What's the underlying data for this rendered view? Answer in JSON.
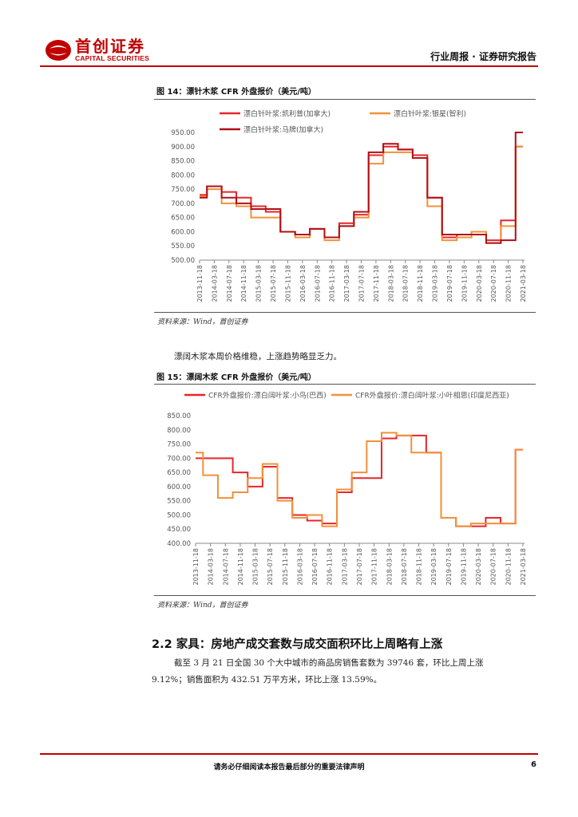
{
  "header": {
    "logo_cn": "首创证券",
    "logo_en": "CAPITAL SECURITIES",
    "report_type": "行业周报 · 证券研究报告",
    "brand_color": "#c00000"
  },
  "figure14": {
    "title": "图 14：漂针木浆 CFR 外盘报价（美元/吨）",
    "source": "资料来源：Wind，首创证券"
  },
  "paragraph1": "漂阔木浆本周价格维稳，上涨趋势略显乏力。",
  "figure15": {
    "title": "图 15：漂阔木浆 CFR 外盘报价（美元/吨）",
    "source": "资料来源：Wind，首创证券"
  },
  "section": {
    "title": "2.2 家具：房地产成交套数与成交面积环比上周略有上涨",
    "body_line1": "截至 3 月 21 日全国 30 个大中城市的商品房销售套数为 39746 套，环比上周上涨",
    "body_line2": "9.12%；销售面积为 432.51 万平方米，环比上涨 13.59%。"
  },
  "footer": {
    "disclaimer": "请务必仔细阅读本报告最后部分的重要法律声明",
    "page_number": "6"
  },
  "chart_data": [
    {
      "type": "line",
      "title": "漂针木浆 CFR 外盘报价（美元/吨）",
      "xlabel": "",
      "ylabel": "",
      "ylim": [
        500,
        950
      ],
      "yticks": [
        "500.00",
        "550.00",
        "600.00",
        "650.00",
        "700.00",
        "750.00",
        "800.00",
        "850.00",
        "900.00",
        "950.00"
      ],
      "categories": [
        "2013-11-18",
        "2014-03-18",
        "2014-07-18",
        "2014-11-18",
        "2015-03-18",
        "2015-07-18",
        "2015-11-18",
        "2016-03-18",
        "2016-07-18",
        "2016-11-18",
        "2017-03-18",
        "2017-07-18",
        "2017-11-18",
        "2018-03-18",
        "2018-07-18",
        "2018-11-18",
        "2019-03-18",
        "2019-07-18",
        "2019-11-18",
        "2020-03-18",
        "2020-07-18",
        "2020-11-18",
        "2021-03-18"
      ],
      "legend_position": "top",
      "grid": false,
      "series": [
        {
          "name": "漂白针叶浆:凯利普(加拿大)",
          "color": "#e8262a",
          "values": [
            730,
            760,
            740,
            720,
            690,
            670,
            600,
            590,
            610,
            580,
            630,
            660,
            870,
            900,
            890,
            870,
            720,
            580,
            590,
            600,
            570,
            640,
            900
          ]
        },
        {
          "name": "漂白针叶浆:银星(智利)",
          "color": "#f0913a",
          "values": [
            725,
            750,
            700,
            690,
            650,
            650,
            600,
            580,
            610,
            570,
            620,
            650,
            840,
            880,
            880,
            860,
            690,
            570,
            580,
            600,
            560,
            620,
            900
          ]
        },
        {
          "name": "漂白针叶浆:马牌(加拿大)",
          "color": "#b01018",
          "values": [
            720,
            760,
            720,
            700,
            680,
            680,
            600,
            590,
            610,
            580,
            620,
            670,
            880,
            910,
            890,
            860,
            720,
            590,
            590,
            590,
            560,
            570,
            950
          ]
        }
      ]
    },
    {
      "type": "line",
      "title": "漂阔木浆 CFR 外盘报价（美元/吨）",
      "xlabel": "",
      "ylabel": "",
      "ylim": [
        400,
        850
      ],
      "yticks": [
        "400.00",
        "450.00",
        "500.00",
        "550.00",
        "600.00",
        "650.00",
        "700.00",
        "750.00",
        "800.00",
        "850.00"
      ],
      "categories": [
        "2013-11-18",
        "2014-03-18",
        "2014-07-18",
        "2014-11-18",
        "2015-03-18",
        "2015-07-18",
        "2015-11-18",
        "2016-03-18",
        "2016-07-18",
        "2016-11-18",
        "2017-03-18",
        "2017-07-18",
        "2017-11-18",
        "2018-03-18",
        "2018-07-18",
        "2018-11-18",
        "2019-03-18",
        "2019-07-18",
        "2019-11-18",
        "2020-03-18",
        "2020-07-18",
        "2020-11-18",
        "2021-03-18"
      ],
      "legend_position": "top",
      "grid": false,
      "series": [
        {
          "name": "CFR外盘报价:漂白阔叶浆:小鸟(巴西)",
          "color": "#e8262a",
          "values": [
            700,
            700,
            700,
            650,
            600,
            670,
            560,
            500,
            480,
            470,
            580,
            630,
            630,
            770,
            780,
            780,
            720,
            490,
            460,
            460,
            490,
            470,
            730
          ]
        },
        {
          "name": "CFR外盘报价:漂白阔叶浆:小叶相思(印度尼西亚)",
          "color": "#f0913a",
          "values": [
            720,
            640,
            560,
            580,
            630,
            680,
            550,
            490,
            500,
            460,
            590,
            650,
            760,
            790,
            780,
            720,
            720,
            490,
            460,
            470,
            470,
            470,
            730
          ]
        }
      ]
    }
  ]
}
